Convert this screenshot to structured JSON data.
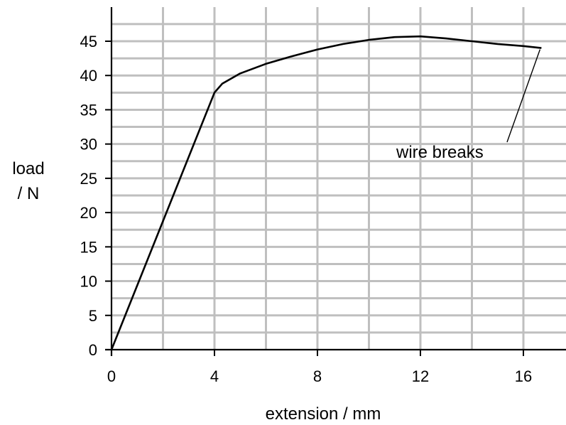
{
  "chart_data": {
    "type": "line",
    "xlabel": "extension / mm",
    "ylabel_line1": "load",
    "ylabel_line2": "/ N",
    "xlim": [
      0,
      17.5
    ],
    "ylim": [
      0,
      48
    ],
    "x_ticks": [
      0,
      4,
      8,
      12,
      16
    ],
    "y_ticks": [
      0,
      5,
      10,
      15,
      20,
      25,
      30,
      35,
      40,
      45
    ],
    "grid": true,
    "minor_x_step": 2,
    "minor_y_step": 2.5,
    "series": [
      {
        "x": [
          0,
          4.0,
          4.3,
          5.0,
          6.0,
          7.0,
          8.0,
          9.0,
          10.0,
          11.0,
          12.0,
          13.0,
          14.0,
          15.0,
          16.0,
          16.7
        ],
        "y": [
          0,
          37.5,
          38.8,
          40.3,
          41.7,
          42.8,
          43.8,
          44.6,
          45.2,
          45.6,
          45.7,
          45.4,
          45.0,
          44.6,
          44.3,
          44.0
        ]
      }
    ],
    "annotation": {
      "text": "wire breaks",
      "point": [
        16.7,
        44.0
      ]
    }
  }
}
